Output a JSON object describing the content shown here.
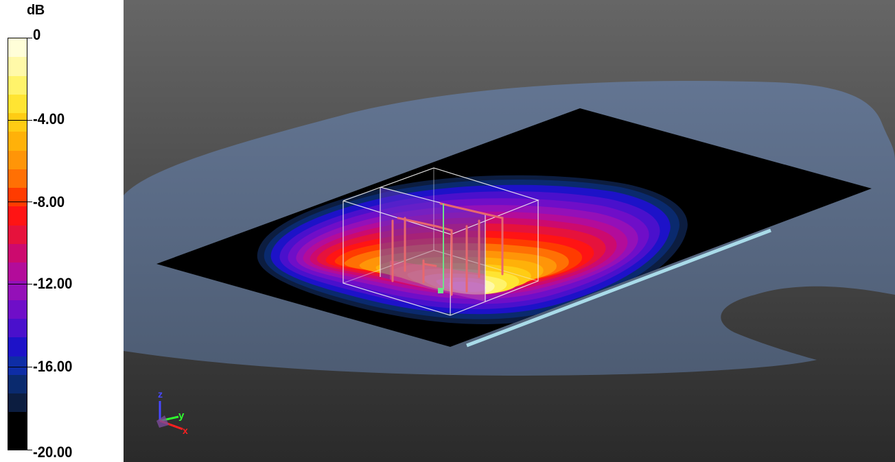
{
  "legend": {
    "unit": "dB",
    "ticks": [
      "0",
      "-4.00",
      "-8.00",
      "-12.00",
      "-16.00",
      "-20.00"
    ],
    "tick_values": [
      0,
      -4,
      -8,
      -12,
      -16,
      -20
    ],
    "range": [
      -20,
      0
    ],
    "band_colors": [
      "#fffed8",
      "#fff9a8",
      "#fff36a",
      "#ffe432",
      "#ffcc14",
      "#ffb109",
      "#ff9508",
      "#ff7004",
      "#ff3b00",
      "#ff1414",
      "#e6123c",
      "#cc0a6e",
      "#b30c9a",
      "#9410b8",
      "#6f0ec8",
      "#4a10cc",
      "#1d12c8",
      "#0e2da6",
      "#0a2a6e",
      "#0c1d40",
      "#000000",
      "#000000"
    ]
  },
  "viewport": {
    "background_top": "#666666",
    "background_bottom": "#2a2a2a",
    "ground_color": "#5a6b85",
    "plane_color": "#000000",
    "edge_highlight_color": "#a9dbe9",
    "wireframe_color": "#f2f2f2",
    "structure_color": "#e8686e",
    "feed_color": "#6fe28a"
  },
  "axes": {
    "x_label": "x",
    "y_label": "y",
    "z_label": "z",
    "x_color": "#ff2020",
    "y_color": "#2fff2f",
    "z_color": "#4848ff"
  }
}
